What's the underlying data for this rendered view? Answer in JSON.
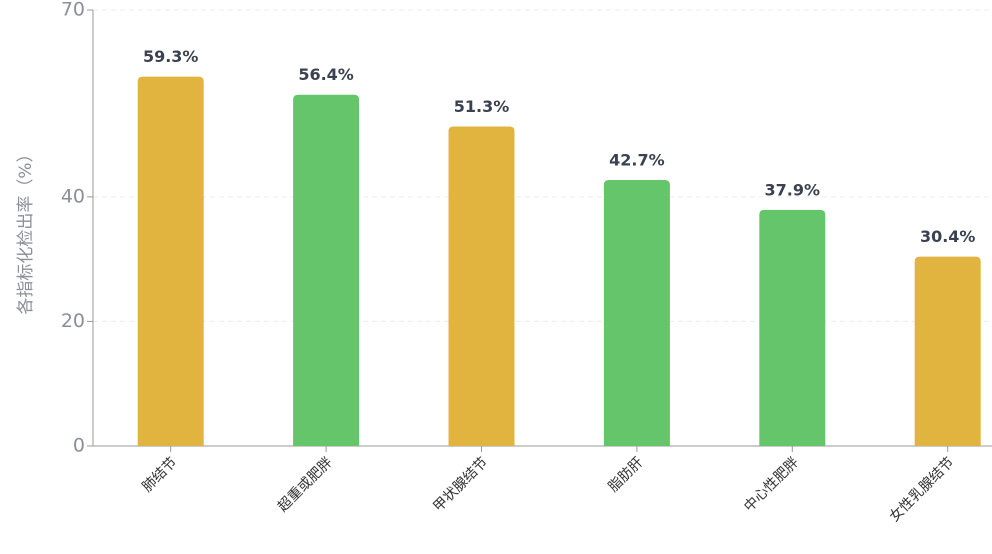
{
  "chart_data": {
    "type": "bar",
    "y_label": "各指标化检出率（%）",
    "categories": [
      "肺结节",
      "超重或肥胖",
      "甲状腺结节",
      "脂肪肝",
      "中心性肥胖",
      "女性乳腺结节"
    ],
    "values": [
      59.3,
      56.4,
      51.3,
      42.7,
      37.9,
      30.4
    ],
    "value_labels": [
      "59.3%",
      "56.4%",
      "51.3%",
      "42.7%",
      "37.9%",
      "30.4%"
    ],
    "colors": [
      "#e0b43e",
      "#65c56a",
      "#e0b43e",
      "#65c56a",
      "#65c56a",
      "#e0b43e"
    ],
    "ylim": [
      0,
      70
    ],
    "yticks": [
      0,
      20,
      40,
      70
    ],
    "grid": true
  }
}
